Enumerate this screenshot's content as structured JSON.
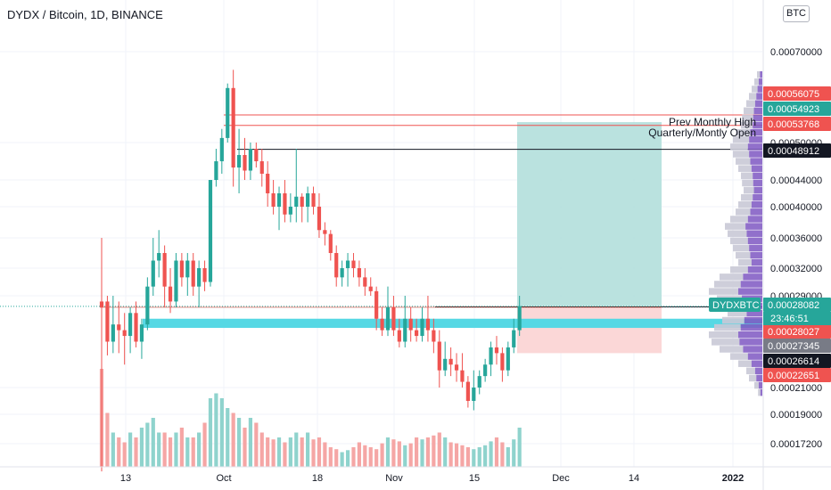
{
  "header": {
    "symbol_title": "DYDX / Bitcoin, 1D, BINANCE",
    "currency_button": "BTC"
  },
  "colors": {
    "up": "#26a69a",
    "down": "#ef5350",
    "vol_up": "#8fd3cd",
    "vol_down": "#f5a6a5",
    "target_zone": "#b2dfdb",
    "stop_zone": "#fbd5d5",
    "support_band": "#56d8e4",
    "vp_purple": "#7e57c2",
    "vp_grey": "#c9c9d6"
  },
  "chart_data": {
    "type": "candlestick",
    "title": "DYDX / Bitcoin, 1D, BINANCE",
    "x_ticks": [
      "13",
      "Oct",
      "18",
      "Nov",
      "15",
      "Dec",
      "14",
      "2022"
    ],
    "y_ticks": [
      "0.00070000",
      "0.00050000",
      "0.00044000",
      "0.00040000",
      "0.00036000",
      "0.00032000",
      "0.00029000",
      "0.00021000",
      "0.00019000",
      "0.00017200"
    ],
    "ylim": [
      0.000156,
      0.0008
    ],
    "candles": [
      {
        "o": 0.000285,
        "h": 0.00036,
        "l": 0.000155,
        "c": 0.00028
      },
      {
        "o": 0.000285,
        "h": 0.00029,
        "l": 0.000238,
        "c": 0.00025
      },
      {
        "o": 0.00025,
        "h": 0.00029,
        "l": 0.00024,
        "c": 0.000265
      },
      {
        "o": 0.000265,
        "h": 0.000285,
        "l": 0.00024,
        "c": 0.00026
      },
      {
        "o": 0.00026,
        "h": 0.000275,
        "l": 0.00023,
        "c": 0.000255
      },
      {
        "o": 0.000255,
        "h": 0.00028,
        "l": 0.00024,
        "c": 0.000275
      },
      {
        "o": 0.000275,
        "h": 0.000285,
        "l": 0.000245,
        "c": 0.00025
      },
      {
        "o": 0.00025,
        "h": 0.00027,
        "l": 0.000235,
        "c": 0.000265
      },
      {
        "o": 0.000265,
        "h": 0.00031,
        "l": 0.00026,
        "c": 0.0003
      },
      {
        "o": 0.0003,
        "h": 0.00036,
        "l": 0.00029,
        "c": 0.00033
      },
      {
        "o": 0.00033,
        "h": 0.00037,
        "l": 0.00031,
        "c": 0.00034
      },
      {
        "o": 0.00034,
        "h": 0.00035,
        "l": 0.00028,
        "c": 0.0003
      },
      {
        "o": 0.0003,
        "h": 0.00032,
        "l": 0.000275,
        "c": 0.000285
      },
      {
        "o": 0.000285,
        "h": 0.00034,
        "l": 0.00028,
        "c": 0.00033
      },
      {
        "o": 0.00033,
        "h": 0.00034,
        "l": 0.0003,
        "c": 0.00031
      },
      {
        "o": 0.00031,
        "h": 0.00034,
        "l": 0.00029,
        "c": 0.00033
      },
      {
        "o": 0.00033,
        "h": 0.00034,
        "l": 0.00029,
        "c": 0.0003
      },
      {
        "o": 0.0003,
        "h": 0.00033,
        "l": 0.00028,
        "c": 0.00032
      },
      {
        "o": 0.00032,
        "h": 0.00033,
        "l": 0.000295,
        "c": 0.000305
      },
      {
        "o": 0.000305,
        "h": 0.00044,
        "l": 0.0003,
        "c": 0.00044
      },
      {
        "o": 0.00044,
        "h": 0.00049,
        "l": 0.00043,
        "c": 0.00047
      },
      {
        "o": 0.00047,
        "h": 0.00053,
        "l": 0.00045,
        "c": 0.00051
      },
      {
        "o": 0.00051,
        "h": 0.00063,
        "l": 0.0005,
        "c": 0.00062
      },
      {
        "o": 0.00062,
        "h": 0.00066,
        "l": 0.00043,
        "c": 0.00046
      },
      {
        "o": 0.00046,
        "h": 0.00053,
        "l": 0.00042,
        "c": 0.00048
      },
      {
        "o": 0.00048,
        "h": 0.00051,
        "l": 0.00044,
        "c": 0.000455
      },
      {
        "o": 0.000455,
        "h": 0.0005,
        "l": 0.00044,
        "c": 0.00049
      },
      {
        "o": 0.00049,
        "h": 0.0005,
        "l": 0.00046,
        "c": 0.00047
      },
      {
        "o": 0.00047,
        "h": 0.00049,
        "l": 0.00043,
        "c": 0.00045
      },
      {
        "o": 0.00045,
        "h": 0.00047,
        "l": 0.0004,
        "c": 0.00042
      },
      {
        "o": 0.00042,
        "h": 0.00044,
        "l": 0.00039,
        "c": 0.0004
      },
      {
        "o": 0.0004,
        "h": 0.00043,
        "l": 0.00037,
        "c": 0.00042
      },
      {
        "o": 0.00042,
        "h": 0.00044,
        "l": 0.00038,
        "c": 0.00039
      },
      {
        "o": 0.00039,
        "h": 0.00042,
        "l": 0.00038,
        "c": 0.0004
      },
      {
        "o": 0.0004,
        "h": 0.00049,
        "l": 0.00038,
        "c": 0.000415
      },
      {
        "o": 0.000415,
        "h": 0.00042,
        "l": 0.00038,
        "c": 0.0004
      },
      {
        "o": 0.0004,
        "h": 0.00043,
        "l": 0.00038,
        "c": 0.00042
      },
      {
        "o": 0.00042,
        "h": 0.00043,
        "l": 0.00039,
        "c": 0.0004
      },
      {
        "o": 0.0004,
        "h": 0.00042,
        "l": 0.00036,
        "c": 0.00037
      },
      {
        "o": 0.00037,
        "h": 0.00038,
        "l": 0.00035,
        "c": 0.000365
      },
      {
        "o": 0.000365,
        "h": 0.00037,
        "l": 0.00033,
        "c": 0.00034
      },
      {
        "o": 0.00034,
        "h": 0.00035,
        "l": 0.0003,
        "c": 0.00031
      },
      {
        "o": 0.00031,
        "h": 0.00033,
        "l": 0.0003,
        "c": 0.00032
      },
      {
        "o": 0.00032,
        "h": 0.00034,
        "l": 0.0003,
        "c": 0.00033
      },
      {
        "o": 0.00033,
        "h": 0.00034,
        "l": 0.00031,
        "c": 0.00032
      },
      {
        "o": 0.00032,
        "h": 0.00033,
        "l": 0.0003,
        "c": 0.00031
      },
      {
        "o": 0.00031,
        "h": 0.00032,
        "l": 0.00029,
        "c": 0.0003
      },
      {
        "o": 0.0003,
        "h": 0.00031,
        "l": 0.00029,
        "c": 0.000295
      },
      {
        "o": 0.000295,
        "h": 0.0003,
        "l": 0.00026,
        "c": 0.00027
      },
      {
        "o": 0.00027,
        "h": 0.00028,
        "l": 0.000255,
        "c": 0.00026
      },
      {
        "o": 0.00026,
        "h": 0.0003,
        "l": 0.000255,
        "c": 0.00028
      },
      {
        "o": 0.00028,
        "h": 0.00029,
        "l": 0.000255,
        "c": 0.00026
      },
      {
        "o": 0.00026,
        "h": 0.00027,
        "l": 0.000245,
        "c": 0.00025
      },
      {
        "o": 0.00025,
        "h": 0.00029,
        "l": 0.000245,
        "c": 0.00027
      },
      {
        "o": 0.00027,
        "h": 0.00028,
        "l": 0.00025,
        "c": 0.00026
      },
      {
        "o": 0.00026,
        "h": 0.00027,
        "l": 0.00025,
        "c": 0.000255
      },
      {
        "o": 0.000255,
        "h": 0.00028,
        "l": 0.00025,
        "c": 0.00027
      },
      {
        "o": 0.00027,
        "h": 0.00029,
        "l": 0.00025,
        "c": 0.00026
      },
      {
        "o": 0.00026,
        "h": 0.00027,
        "l": 0.00024,
        "c": 0.00025
      },
      {
        "o": 0.00025,
        "h": 0.00026,
        "l": 0.00021,
        "c": 0.000225
      },
      {
        "o": 0.000225,
        "h": 0.00025,
        "l": 0.00022,
        "c": 0.000235
      },
      {
        "o": 0.000235,
        "h": 0.000245,
        "l": 0.00022,
        "c": 0.00023
      },
      {
        "o": 0.00023,
        "h": 0.00024,
        "l": 0.000215,
        "c": 0.000225
      },
      {
        "o": 0.000225,
        "h": 0.00024,
        "l": 0.00021,
        "c": 0.000215
      },
      {
        "o": 0.000215,
        "h": 0.00022,
        "l": 0.000195,
        "c": 0.0002
      },
      {
        "o": 0.0002,
        "h": 0.000225,
        "l": 0.000193,
        "c": 0.00021
      },
      {
        "o": 0.00021,
        "h": 0.000225,
        "l": 0.000205,
        "c": 0.00022
      },
      {
        "o": 0.00022,
        "h": 0.000235,
        "l": 0.000215,
        "c": 0.00023
      },
      {
        "o": 0.00023,
        "h": 0.00025,
        "l": 0.00022,
        "c": 0.000245
      },
      {
        "o": 0.000245,
        "h": 0.000255,
        "l": 0.00023,
        "c": 0.00024
      },
      {
        "o": 0.00024,
        "h": 0.000245,
        "l": 0.000215,
        "c": 0.000225
      },
      {
        "o": 0.000225,
        "h": 0.00025,
        "l": 0.00022,
        "c": 0.000245
      },
      {
        "o": 0.000245,
        "h": 0.00027,
        "l": 0.00024,
        "c": 0.00026
      },
      {
        "o": 0.00026,
        "h": 0.00029,
        "l": 0.000255,
        "c": 0.000281
      }
    ],
    "volume": [
      100,
      55,
      35,
      30,
      25,
      35,
      30,
      40,
      45,
      50,
      35,
      35,
      30,
      35,
      40,
      30,
      30,
      35,
      45,
      70,
      75,
      70,
      60,
      55,
      50,
      40,
      50,
      45,
      35,
      30,
      28,
      30,
      25,
      30,
      35,
      30,
      35,
      28,
      30,
      25,
      20,
      18,
      15,
      17,
      20,
      25,
      22,
      20,
      18,
      24,
      30,
      28,
      26,
      22,
      24,
      30,
      28,
      30,
      32,
      35,
      30,
      25,
      24,
      22,
      20,
      18,
      20,
      22,
      26,
      30,
      25,
      20,
      28,
      40
    ],
    "volume_max": 100,
    "horizontal_levels": [
      {
        "price": 0.00056075,
        "color": "#ef5350",
        "label": "0.00056075"
      },
      {
        "price": 0.00053768,
        "color": "#ef5350",
        "label": "0.00053768"
      },
      {
        "price": 0.00048912,
        "color": "#131722",
        "label": "0.00048912"
      },
      {
        "price": 0.00028027,
        "color": "#131722",
        "label": "0.00028027"
      }
    ],
    "annotations": [
      "Prev Monthly High",
      "Quarterly/Montly Open"
    ],
    "support_zone": {
      "low": 0.000262,
      "high": 0.00027
    },
    "position_tool": {
      "entry": 0.00028082,
      "target": 0.000545,
      "stop": 0.00024
    },
    "price_labels": [
      {
        "label": "0.00056075",
        "price": 0.00056075,
        "color": "#ef5350"
      },
      {
        "label": "0.00054923",
        "price": 0.00054923,
        "color": "#26a69a"
      },
      {
        "label": "0.00053768",
        "price": 0.00053768,
        "color": "#ef5350"
      },
      {
        "label": "0.00048912",
        "price": 0.00048912,
        "color": "#131722"
      },
      {
        "label": "0.00028082",
        "price": 0.00028082,
        "color": "#26a69a"
      },
      {
        "label": "0.00028027",
        "price": 0.00028027,
        "color": "#ef5350"
      },
      {
        "label": "0.00027345",
        "price": 0.00027345,
        "color": "#787b86"
      },
      {
        "label": "0.00026614",
        "price": 0.00026614,
        "color": "#131722"
      },
      {
        "label": "0.00022651",
        "price": 0.00022651,
        "color": "#ef5350"
      }
    ],
    "last_price_tag": {
      "symbol": "DYDXBTC",
      "countdown": "23:46:51",
      "price": 0.00028082
    },
    "volume_profile": [
      0.1,
      0.15,
      0.2,
      0.25,
      0.3,
      0.35,
      0.38,
      0.4,
      0.5,
      0.55,
      0.6,
      0.55,
      0.5,
      0.45,
      0.4,
      0.38,
      0.35,
      0.4,
      0.45,
      0.5,
      0.6,
      0.7,
      0.65,
      0.6,
      0.55,
      0.5,
      0.45,
      0.6,
      0.8,
      0.9,
      1.0,
      0.85,
      0.7,
      0.65,
      0.75,
      0.9,
      1.0,
      0.95,
      0.8,
      0.6,
      0.45,
      0.3,
      0.25,
      0.15,
      0.08
    ]
  }
}
